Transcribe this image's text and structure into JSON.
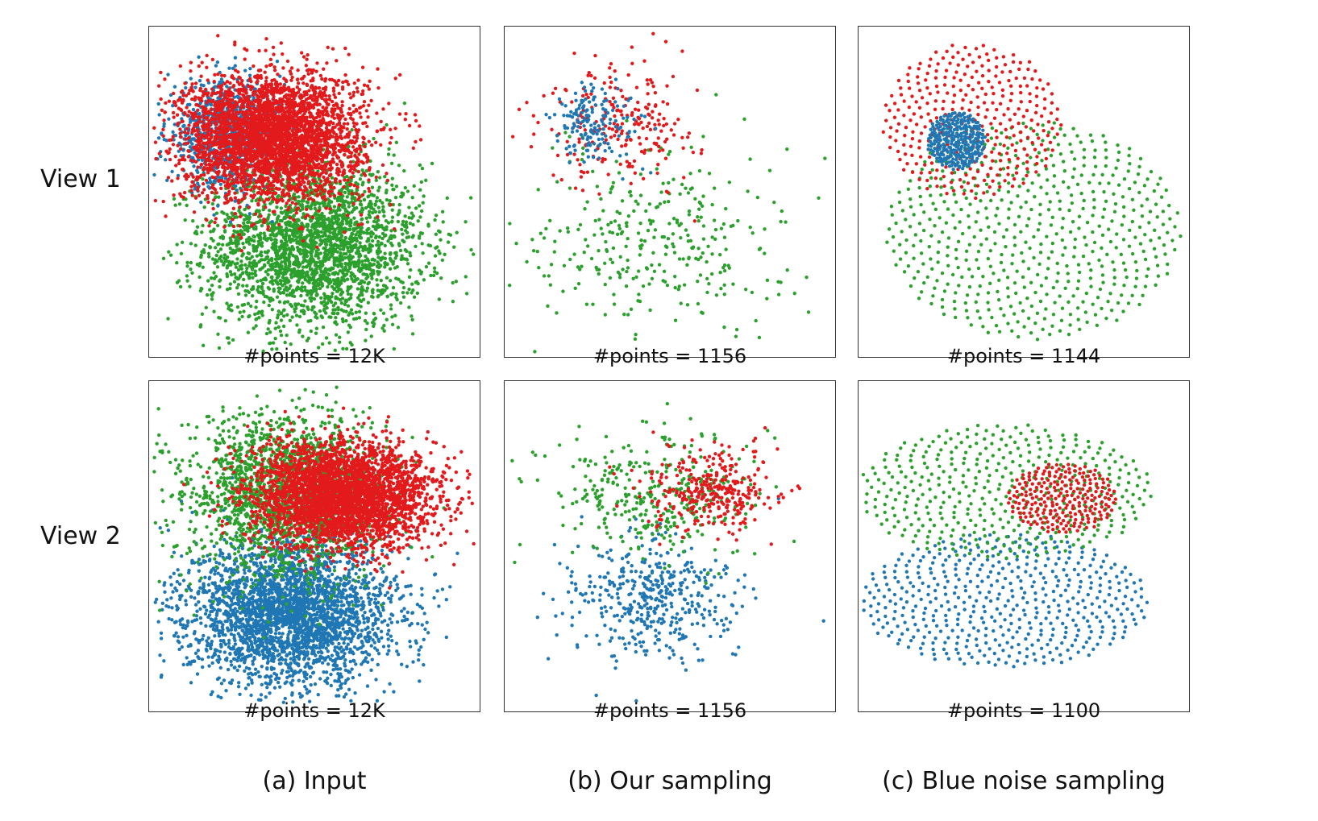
{
  "row_labels": [
    "View 1",
    "View 2"
  ],
  "captions": [
    "(a) Input",
    "(b) Our sampling",
    "(c) Blue noise sampling"
  ],
  "colors": {
    "blue": "#1f77b4",
    "red": "#e31a1c",
    "green": "#2ca02c"
  },
  "chart_data": [
    {
      "type": "scatter",
      "view": "View 1",
      "method": "(a) Input",
      "label": "#points = 12K",
      "xlim": [
        0,
        1
      ],
      "ylim": [
        0,
        1
      ],
      "series": [
        {
          "color": "#2ca02c",
          "points": 2600,
          "center": [
            0.5,
            0.33
          ],
          "spread": [
            0.17,
            0.13
          ],
          "spread_mode": "gaussian"
        },
        {
          "color": "#1f77b4",
          "points": 800,
          "center": [
            0.22,
            0.68
          ],
          "spread": [
            0.09,
            0.08
          ],
          "spread_mode": "gaussian"
        },
        {
          "color": "#e31a1c",
          "points": 3400,
          "center": [
            0.37,
            0.67
          ],
          "spread": [
            0.14,
            0.1
          ],
          "spread_mode": "gaussian"
        }
      ]
    },
    {
      "type": "scatter",
      "view": "View 1",
      "method": "(b) Our sampling",
      "label": "#points = 1156",
      "xlim": [
        0,
        1
      ],
      "ylim": [
        0,
        1
      ],
      "series": [
        {
          "color": "#2ca02c",
          "points": 330,
          "center": [
            0.46,
            0.36
          ],
          "spread": [
            0.2,
            0.14
          ],
          "spread_mode": "gaussian"
        },
        {
          "color": "#e31a1c",
          "points": 230,
          "center": [
            0.35,
            0.72
          ],
          "spread": [
            0.12,
            0.1
          ],
          "spread_mode": "gaussian"
        },
        {
          "color": "#1f77b4",
          "points": 160,
          "center": [
            0.27,
            0.71
          ],
          "spread": [
            0.07,
            0.06
          ],
          "spread_mode": "gaussian"
        }
      ]
    },
    {
      "type": "scatter",
      "view": "View 1",
      "method": "(c) Blue noise sampling",
      "label": "#points = 1144",
      "xlim": [
        0,
        1
      ],
      "ylim": [
        0,
        1
      ],
      "series": [
        {
          "color": "#2ca02c",
          "points": 560,
          "center": [
            0.53,
            0.38
          ],
          "spread": [
            0.46,
            0.34
          ],
          "spread_mode": "sunflower"
        },
        {
          "color": "#e31a1c",
          "points": 330,
          "center": [
            0.34,
            0.72
          ],
          "spread": [
            0.28,
            0.24
          ],
          "spread_mode": "sunflower"
        },
        {
          "color": "#1f77b4",
          "points": 260,
          "center": [
            0.29,
            0.66
          ],
          "spread": [
            0.09,
            0.09
          ],
          "spread_mode": "sunflower"
        }
      ]
    },
    {
      "type": "scatter",
      "view": "View 2",
      "method": "(a) Input",
      "label": "#points = 12K",
      "xlim": [
        0,
        1
      ],
      "ylim": [
        0,
        1
      ],
      "series": [
        {
          "color": "#1f77b4",
          "points": 3000,
          "center": [
            0.43,
            0.29
          ],
          "spread": [
            0.16,
            0.11
          ],
          "spread_mode": "gaussian"
        },
        {
          "color": "#2ca02c",
          "points": 1800,
          "center": [
            0.4,
            0.66
          ],
          "spread": [
            0.15,
            0.13
          ],
          "spread_mode": "gaussian"
        },
        {
          "color": "#e31a1c",
          "points": 3400,
          "center": [
            0.59,
            0.66
          ],
          "spread": [
            0.14,
            0.08
          ],
          "spread_mode": "gaussian"
        }
      ]
    },
    {
      "type": "scatter",
      "view": "View 2",
      "method": "(b) Our sampling",
      "label": "#points = 1156",
      "xlim": [
        0,
        1
      ],
      "ylim": [
        0,
        1
      ],
      "series": [
        {
          "color": "#1f77b4",
          "points": 430,
          "center": [
            0.43,
            0.33
          ],
          "spread": [
            0.13,
            0.1
          ],
          "spread_mode": "gaussian"
        },
        {
          "color": "#2ca02c",
          "points": 330,
          "center": [
            0.45,
            0.67
          ],
          "spread": [
            0.16,
            0.1
          ],
          "spread_mode": "gaussian"
        },
        {
          "color": "#e31a1c",
          "points": 330,
          "center": [
            0.62,
            0.67
          ],
          "spread": [
            0.1,
            0.07
          ],
          "spread_mode": "gaussian"
        }
      ]
    },
    {
      "type": "scatter",
      "view": "View 2",
      "method": "(c) Blue noise sampling",
      "label": "#points = 1100",
      "xlim": [
        0,
        1
      ],
      "ylim": [
        0,
        1
      ],
      "series": [
        {
          "color": "#1f77b4",
          "points": 480,
          "center": [
            0.44,
            0.33
          ],
          "spread": [
            0.45,
            0.21
          ],
          "spread_mode": "sunflower"
        },
        {
          "color": "#2ca02c",
          "points": 420,
          "center": [
            0.44,
            0.67
          ],
          "spread": [
            0.46,
            0.21
          ],
          "spread_mode": "sunflower"
        },
        {
          "color": "#e31a1c",
          "points": 240,
          "center": [
            0.62,
            0.65
          ],
          "spread": [
            0.17,
            0.11
          ],
          "spread_mode": "sunflower"
        }
      ]
    }
  ]
}
